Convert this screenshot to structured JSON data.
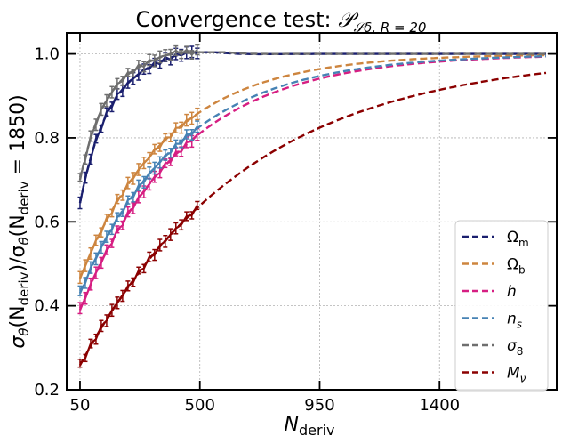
{
  "chart_data": {
    "type": "line",
    "title": "Convergence test: ",
    "title_math": "𝒫",
    "title_math_sub": "𝒮δ, R = 20",
    "xlabel": "N",
    "xlabel_sub": "deriv",
    "ylabel_parts": [
      "σ",
      "θ",
      "(N",
      "deriv",
      ")/σ",
      "θ",
      "(N",
      "deriv",
      " = 1850)"
    ],
    "xlim": [
      0,
      1840
    ],
    "ylim": [
      0.2,
      1.05
    ],
    "xticks": [
      50,
      500,
      950,
      1400
    ],
    "yticks": [
      0.2,
      0.4,
      0.6,
      0.8,
      1.0
    ],
    "xtick_labels": [
      "50",
      "500",
      "950",
      "1400"
    ],
    "ytick_labels": [
      "0.2",
      "0.4",
      "0.6",
      "0.8",
      "1.0"
    ],
    "grid": true,
    "legend_position": "lower-right",
    "fit_range": [
      50,
      1800
    ],
    "measured_range": [
      50,
      500
    ],
    "series": [
      {
        "name": "Ωm",
        "label_main": "Ω",
        "label_sub": "m",
        "color": "#1a1f6e",
        "start": 0.645,
        "k": 9.0,
        "bump": 0.012
      },
      {
        "name": "Ωb",
        "label_main": "Ω",
        "label_sub": "b",
        "color": "#cd853f",
        "start": 0.465,
        "k": 3.0,
        "bump": 0.0
      },
      {
        "name": "h",
        "label_main": "h",
        "label_sub": "",
        "color": "#d61e82",
        "start": 0.39,
        "k": 2.6,
        "bump": 0.0
      },
      {
        "name": "ns",
        "label_main": "n",
        "label_sub": "s",
        "color": "#4682b4",
        "start": 0.43,
        "k": 2.65,
        "bump": 0.0
      },
      {
        "name": "σ8",
        "label_main": "σ",
        "label_sub": "8",
        "color": "#6e6e6e",
        "start": 0.7,
        "k": 10.0,
        "bump": 0.015
      },
      {
        "name": "Mν",
        "label_main": "M",
        "label_sub": "ν",
        "color": "#8b0000",
        "start": 0.258,
        "k": 1.6,
        "bump": 0.0
      }
    ]
  }
}
